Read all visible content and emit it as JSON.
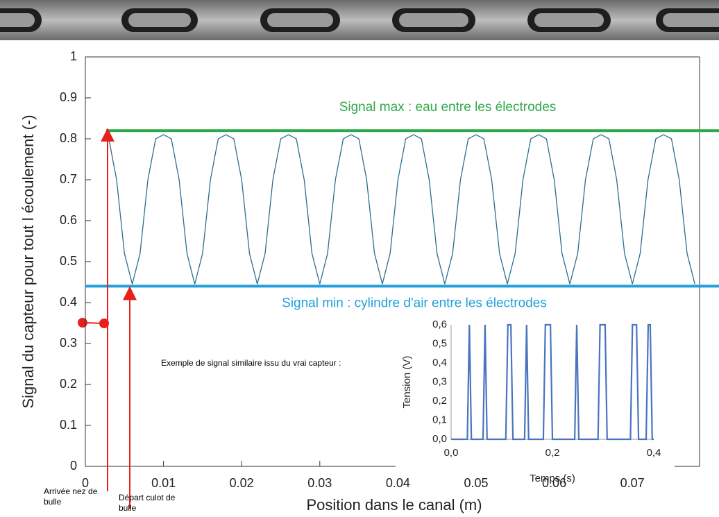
{
  "chart_data": [
    {
      "type": "line",
      "x_label": "Position dans le canal (m)",
      "y_label": "Signal du capteur pour tout l écoulement (-)",
      "xlim": [
        0,
        0.0786
      ],
      "ylim": [
        0,
        1
      ],
      "xticks": [
        0,
        0.01,
        0.02,
        0.03,
        0.04,
        0.05,
        0.06,
        0.07
      ],
      "yticks": [
        0,
        0.1,
        0.2,
        0.3,
        0.4,
        0.5,
        0.6,
        0.7,
        0.8,
        0.9,
        1
      ],
      "grid": false,
      "series": [
        {
          "color": "#2b6e8f",
          "x": [
            0.003,
            0.004,
            0.005,
            0.006,
            0.007,
            0.008,
            0.009,
            0.01,
            0.011,
            0.012,
            0.013,
            0.014,
            0.015,
            0.016,
            0.017,
            0.018,
            0.019,
            0.02,
            0.021,
            0.022,
            0.023,
            0.024,
            0.025,
            0.026,
            0.027,
            0.028,
            0.029,
            0.03,
            0.031,
            0.032,
            0.033,
            0.034,
            0.035,
            0.036,
            0.037,
            0.038,
            0.039,
            0.04,
            0.041,
            0.042,
            0.043,
            0.044,
            0.045,
            0.046,
            0.047,
            0.048,
            0.049,
            0.05,
            0.051,
            0.052,
            0.053,
            0.054,
            0.055,
            0.056,
            0.057,
            0.058,
            0.059,
            0.06,
            0.061,
            0.062,
            0.063,
            0.064,
            0.065,
            0.066,
            0.067,
            0.068,
            0.069,
            0.07,
            0.071,
            0.072,
            0.073,
            0.074,
            0.075,
            0.076,
            0.077,
            0.078
          ],
          "values": [
            0.8,
            0.7,
            0.52,
            0.445,
            0.52,
            0.7,
            0.8,
            0.81,
            0.8,
            0.7,
            0.52,
            0.445,
            0.52,
            0.7,
            0.8,
            0.81,
            0.8,
            0.7,
            0.52,
            0.445,
            0.52,
            0.7,
            0.8,
            0.81,
            0.8,
            0.7,
            0.52,
            0.445,
            0.52,
            0.7,
            0.8,
            0.81,
            0.8,
            0.7,
            0.52,
            0.445,
            0.52,
            0.7,
            0.8,
            0.81,
            0.8,
            0.7,
            0.52,
            0.445,
            0.52,
            0.7,
            0.8,
            0.81,
            0.8,
            0.7,
            0.52,
            0.445,
            0.52,
            0.7,
            0.8,
            0.81,
            0.8,
            0.7,
            0.52,
            0.445,
            0.52,
            0.7,
            0.8,
            0.81,
            0.8,
            0.7,
            0.52,
            0.445,
            0.52,
            0.7,
            0.8,
            0.81,
            0.8,
            0.7,
            0.52,
            0.445
          ]
        }
      ],
      "hlines": [
        {
          "value": 0.82,
          "label": "Signal max : eau entre les électrodes",
          "color": "#2fa84a"
        },
        {
          "value": 0.44,
          "label": "Signal min : cylindre d'air entre les électrodes",
          "color": "#21a0db"
        }
      ],
      "annotations": [
        "Arrivée nez de bulle",
        "Départ culot de bulle"
      ]
    },
    {
      "type": "line",
      "title": "Exemple de signal similaire issu du vrai capteur :",
      "x_label": "Temps (s)",
      "y_label": "Tension (V)",
      "xlim": [
        0,
        0.4
      ],
      "ylim": [
        0,
        0.6
      ],
      "xticks": [
        {
          "value": 0,
          "label": "0,0"
        },
        {
          "value": 0.2,
          "label": "0,2"
        },
        {
          "value": 0.4,
          "label": "0,4"
        }
      ],
      "yticks": [
        {
          "value": 0,
          "label": "0,0"
        },
        {
          "value": 0.1,
          "label": "0,1"
        },
        {
          "value": 0.2,
          "label": "0,2"
        },
        {
          "value": 0.3,
          "label": "0,3"
        },
        {
          "value": 0.4,
          "label": "0,4"
        },
        {
          "value": 0.5,
          "label": "0,5"
        },
        {
          "value": 0.6,
          "label": "0,6"
        }
      ],
      "grid": false,
      "series": [
        {
          "color": "#4a74c0",
          "x": [
            0,
            0.032,
            0.036,
            0.04,
            0.063,
            0.067,
            0.071,
            0.108,
            0.112,
            0.118,
            0.122,
            0.145,
            0.149,
            0.153,
            0.182,
            0.186,
            0.196,
            0.2,
            0.244,
            0.248,
            0.252,
            0.29,
            0.294,
            0.304,
            0.308,
            0.354,
            0.358,
            0.366,
            0.37,
            0.385,
            0.389,
            0.393,
            0.397,
            0.4
          ],
          "values": [
            0,
            0,
            0.6,
            0,
            0,
            0.6,
            0,
            0,
            0.6,
            0.6,
            0,
            0,
            0.6,
            0,
            0,
            0.6,
            0.6,
            0,
            0,
            0.6,
            0,
            0,
            0.6,
            0.6,
            0,
            0,
            0.6,
            0.6,
            0,
            0,
            0.6,
            0.6,
            0,
            0
          ]
        }
      ]
    }
  ]
}
